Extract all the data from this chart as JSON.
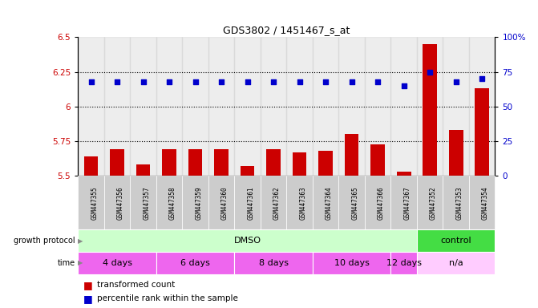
{
  "title": "GDS3802 / 1451467_s_at",
  "samples": [
    "GSM447355",
    "GSM447356",
    "GSM447357",
    "GSM447358",
    "GSM447359",
    "GSM447360",
    "GSM447361",
    "GSM447362",
    "GSM447363",
    "GSM447364",
    "GSM447365",
    "GSM447366",
    "GSM447367",
    "GSM447352",
    "GSM447353",
    "GSM447354"
  ],
  "bar_values": [
    5.64,
    5.69,
    5.58,
    5.69,
    5.69,
    5.69,
    5.57,
    5.69,
    5.67,
    5.68,
    5.8,
    5.73,
    5.53,
    6.45,
    5.83,
    6.13
  ],
  "dot_values": [
    6.18,
    6.18,
    6.18,
    6.18,
    6.18,
    6.18,
    6.18,
    6.18,
    6.18,
    6.18,
    6.18,
    6.18,
    6.15,
    6.25,
    6.18,
    6.2
  ],
  "bar_color": "#cc0000",
  "dot_color": "#0000cc",
  "ylim_left": [
    5.5,
    6.5
  ],
  "ylim_right": [
    0,
    100
  ],
  "yticks_left": [
    5.5,
    5.75,
    6.0,
    6.25,
    6.5
  ],
  "yticks_right": [
    0,
    25,
    50,
    75,
    100
  ],
  "ytick_labels_left": [
    "5.5",
    "5.75",
    "6",
    "6.25",
    "6.5"
  ],
  "ytick_labels_right": [
    "0",
    "25",
    "50",
    "75",
    "100%"
  ],
  "grid_values": [
    5.75,
    6.0,
    6.25
  ],
  "growth_protocol_groups": [
    {
      "label": "DMSO",
      "start": 0,
      "end": 13,
      "color": "#ccffcc"
    },
    {
      "label": "control",
      "start": 13,
      "end": 16,
      "color": "#44dd44"
    }
  ],
  "time_groups": [
    {
      "label": "4 days",
      "start": 0,
      "end": 3,
      "color": "#ee66ee"
    },
    {
      "label": "6 days",
      "start": 3,
      "end": 6,
      "color": "#ee66ee"
    },
    {
      "label": "8 days",
      "start": 6,
      "end": 9,
      "color": "#ee66ee"
    },
    {
      "label": "10 days",
      "start": 9,
      "end": 12,
      "color": "#ee66ee"
    },
    {
      "label": "12 days",
      "start": 12,
      "end": 13,
      "color": "#ee66ee"
    },
    {
      "label": "n/a",
      "start": 13,
      "end": 16,
      "color": "#ffccff"
    }
  ],
  "legend_bar_label": "transformed count",
  "legend_dot_label": "percentile rank within the sample",
  "growth_protocol_label": "growth protocol",
  "time_label": "time",
  "tick_label_color_left": "#cc0000",
  "tick_label_color_right": "#0000cc",
  "sample_bg_color": "#cccccc",
  "col_border_color": "#ffffff"
}
